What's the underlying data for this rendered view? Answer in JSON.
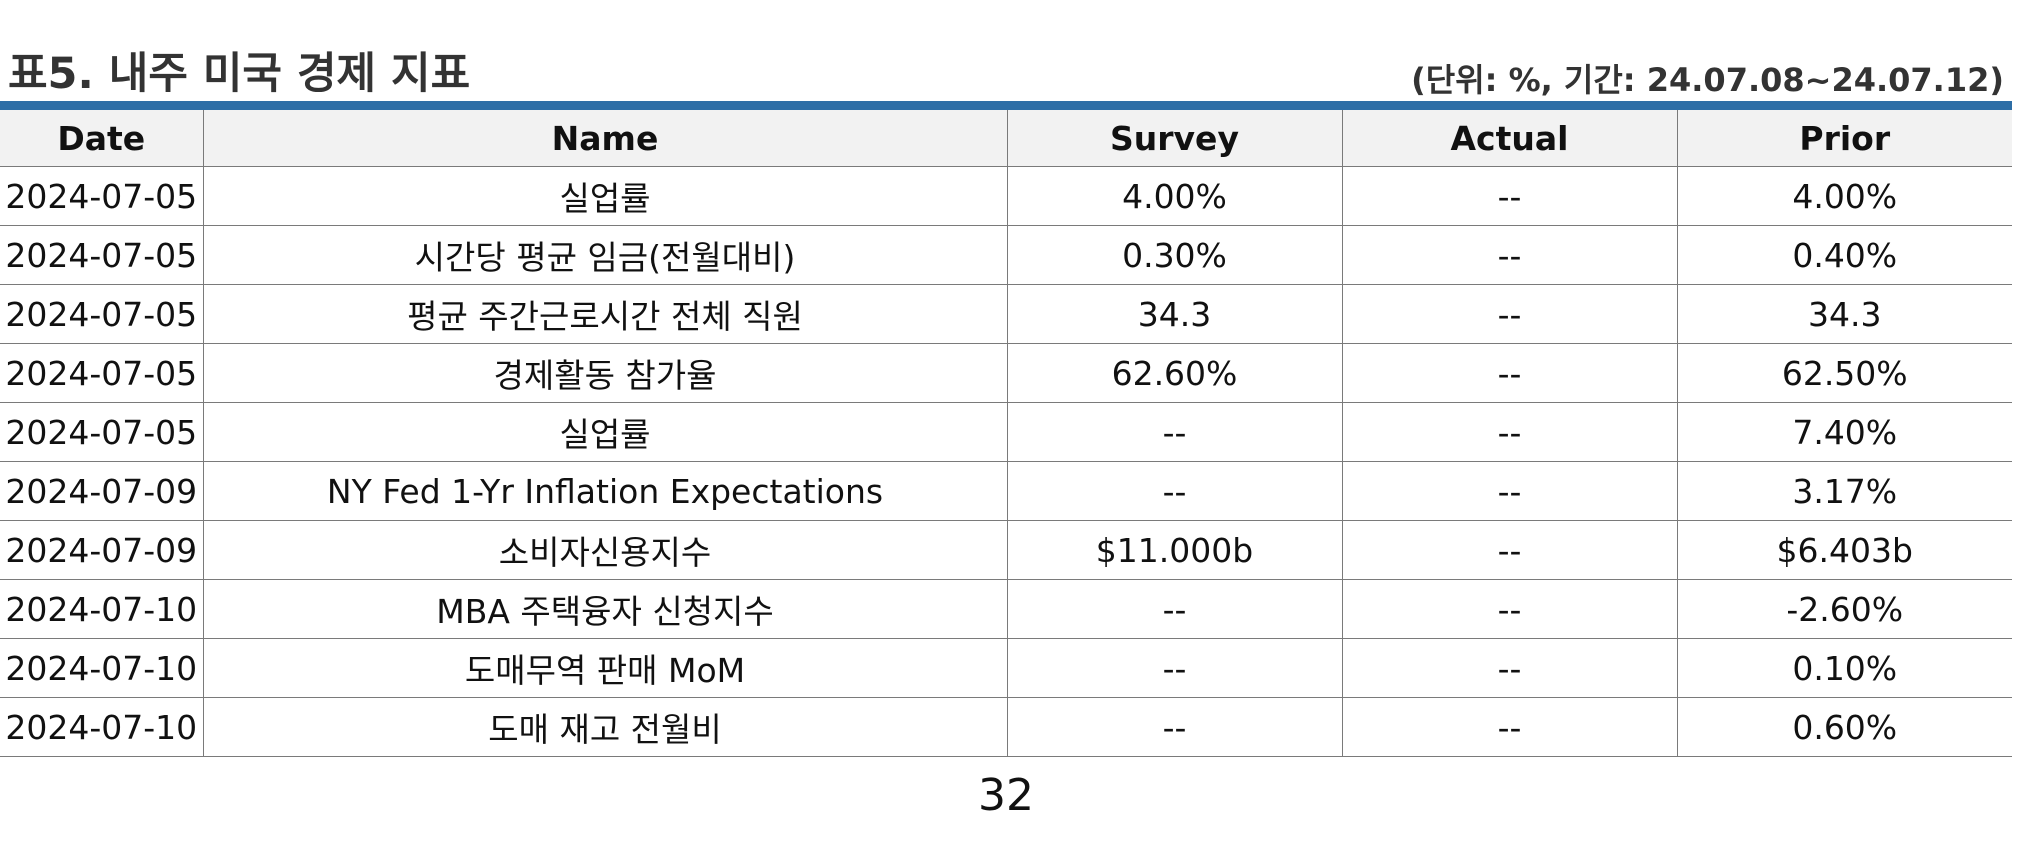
{
  "header": {
    "title": "표5. 내주 미국 경제 지표",
    "unit_note": "(단위: %, 기간: 24.07.08~24.07.12)"
  },
  "table": {
    "columns": [
      "Date",
      "Name",
      "Survey",
      "Actual",
      "Prior"
    ],
    "rows": [
      [
        "2024-07-05",
        "실업률",
        "4.00%",
        "--",
        "4.00%"
      ],
      [
        "2024-07-05",
        "시간당 평균 임금(전월대비)",
        "0.30%",
        "--",
        "0.40%"
      ],
      [
        "2024-07-05",
        "평균 주간근로시간 전체 직원",
        "34.3",
        "--",
        "34.3"
      ],
      [
        "2024-07-05",
        "경제활동 참가율",
        "62.60%",
        "--",
        "62.50%"
      ],
      [
        "2024-07-05",
        "실업률",
        "--",
        "--",
        "7.40%"
      ],
      [
        "2024-07-09",
        "NY Fed 1-Yr Inflation Expectations",
        "--",
        "--",
        "3.17%"
      ],
      [
        "2024-07-09",
        "소비자신용지수",
        "$11.000b",
        "--",
        "$6.403b"
      ],
      [
        "2024-07-10",
        "MBA 주택융자 신청지수",
        "--",
        "--",
        "-2.60%"
      ],
      [
        "2024-07-10",
        "도매무역 판매 MoM",
        "--",
        "--",
        "0.10%"
      ],
      [
        "2024-07-10",
        "도매 재고 전월비",
        "--",
        "--",
        "0.60%"
      ]
    ]
  },
  "footer": {
    "page_number": "32"
  }
}
